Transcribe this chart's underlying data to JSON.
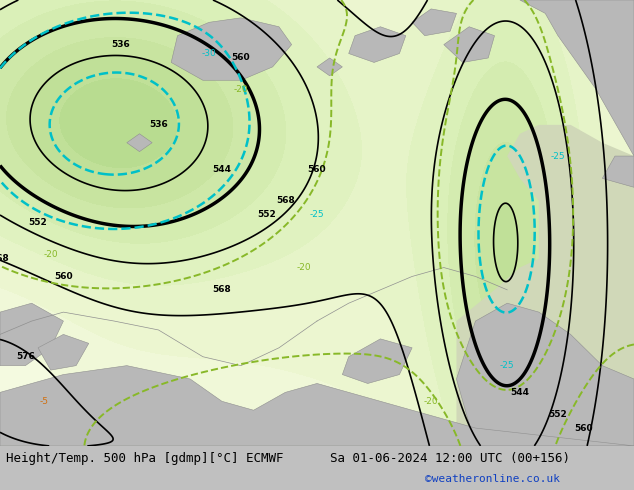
{
  "title_left": "Height/Temp. 500 hPa [gdmp][°C] ECMWF",
  "title_right": "Sa 01-06-2024 12:00 UTC (00+156)",
  "credit": "©weatheronline.co.uk",
  "land_color_green": "#c8e8a0",
  "land_color_gray": "#b8b8b8",
  "contour_color_black": "#000000",
  "contour_color_cyan": "#00c0c8",
  "contour_color_green_dashed": "#88b828",
  "contour_color_orange": "#d07010",
  "title_fontsize": 9,
  "credit_fontsize": 8,
  "credit_color": "#1040c0",
  "fig_bg": "#c0c0c0"
}
